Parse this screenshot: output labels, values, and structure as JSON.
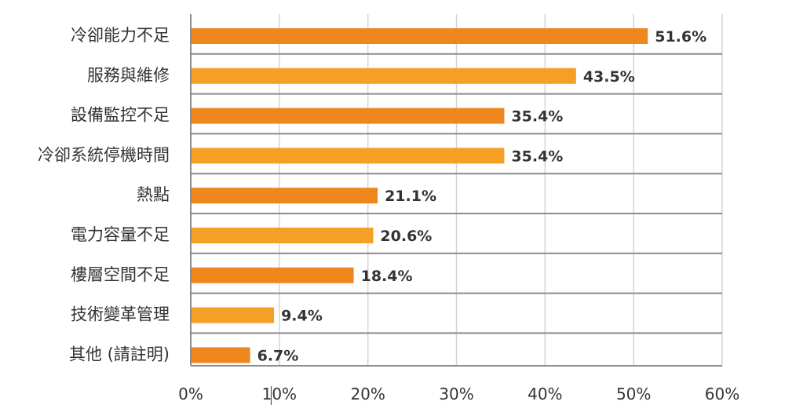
{
  "chart_data": {
    "type": "bar",
    "orientation": "horizontal",
    "categories": [
      "冷卻能力不足",
      "服務與維修",
      "設備監控不足",
      "冷卻系統停機時間",
      "熱點",
      "電力容量不足",
      "樓層空間不足",
      "技術變革管理",
      "其他 (請註明)"
    ],
    "values": [
      51.6,
      43.5,
      35.4,
      35.4,
      21.1,
      20.6,
      18.4,
      9.4,
      6.7
    ],
    "value_labels": [
      "51.6%",
      "43.5%",
      "35.4%",
      "35.4%",
      "21.1%",
      "20.6%",
      "18.4%",
      "9.4%",
      "6.7%"
    ],
    "x_ticks": [
      0,
      10,
      20,
      30,
      40,
      50,
      60
    ],
    "x_tick_labels": [
      "0%",
      "10%",
      "20%",
      "30%",
      "40%",
      "50%",
      "60%"
    ],
    "xlim": [
      0,
      60
    ],
    "title": "",
    "xlabel": "",
    "ylabel": "",
    "grid": "vertical",
    "legend": "none",
    "colors": {
      "bar_dark": "#ef861e",
      "bar_light": "#f5a024",
      "grid": "#d4d4d4",
      "separator": "#8c8c8c",
      "axis": "#8c8c8c",
      "text": "#333333"
    }
  }
}
